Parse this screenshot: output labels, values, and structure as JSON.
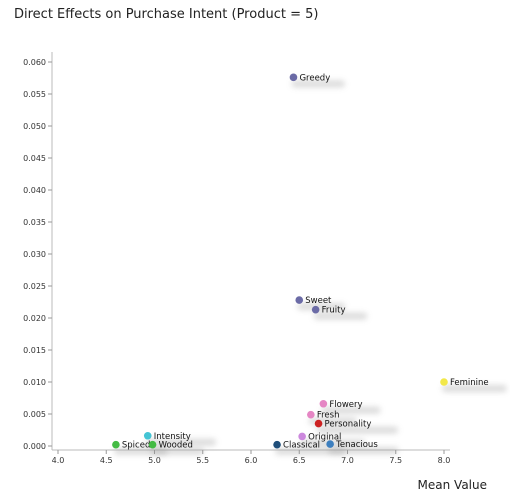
{
  "chart_data": {
    "type": "scatter",
    "title": "Direct Effects on Purchase Intent (Product = 5)",
    "xlabel": "Mean Value",
    "ylabel": "",
    "xlim": [
      4.0,
      8.0
    ],
    "ylim": [
      0.0,
      0.06
    ],
    "xticks": [
      "4.0",
      "4.5",
      "5.0",
      "5.5",
      "6.0",
      "6.5",
      "7.0",
      "7.5",
      "8.0"
    ],
    "yticks": [
      "0.000",
      "0.005",
      "0.010",
      "0.015",
      "0.020",
      "0.025",
      "0.030",
      "0.035",
      "0.040",
      "0.045",
      "0.050",
      "0.055",
      "0.060"
    ],
    "grid": false,
    "points": [
      {
        "label": "Greedy",
        "x": 6.44,
        "y": 0.0576,
        "color": "#6b6ba6"
      },
      {
        "label": "Sweet",
        "x": 6.5,
        "y": 0.0228,
        "color": "#6b6ba6"
      },
      {
        "label": "Fruity",
        "x": 6.67,
        "y": 0.0213,
        "color": "#6b6ba6"
      },
      {
        "label": "Feminine",
        "x": 8.0,
        "y": 0.01,
        "color": "#f2e84a"
      },
      {
        "label": "Flowery",
        "x": 6.75,
        "y": 0.0066,
        "color": "#e586c4"
      },
      {
        "label": "Fresh",
        "x": 6.62,
        "y": 0.0049,
        "color": "#e586c4"
      },
      {
        "label": "Personality",
        "x": 6.7,
        "y": 0.0035,
        "color": "#cc2222"
      },
      {
        "label": "Original",
        "x": 6.53,
        "y": 0.0015,
        "color": "#cc88dd"
      },
      {
        "label": "Classical",
        "x": 6.27,
        "y": 0.0002,
        "color": "#1f4e7a"
      },
      {
        "label": "Tenacious",
        "x": 6.82,
        "y": 0.0003,
        "color": "#3d7fbf"
      },
      {
        "label": "Intensity",
        "x": 4.93,
        "y": 0.0016,
        "color": "#44c4d4"
      },
      {
        "label": "Spiced",
        "x": 4.6,
        "y": 0.0002,
        "color": "#44bb44"
      },
      {
        "label": "Wooded",
        "x": 4.98,
        "y": 0.0002,
        "color": "#44bb44"
      }
    ]
  }
}
